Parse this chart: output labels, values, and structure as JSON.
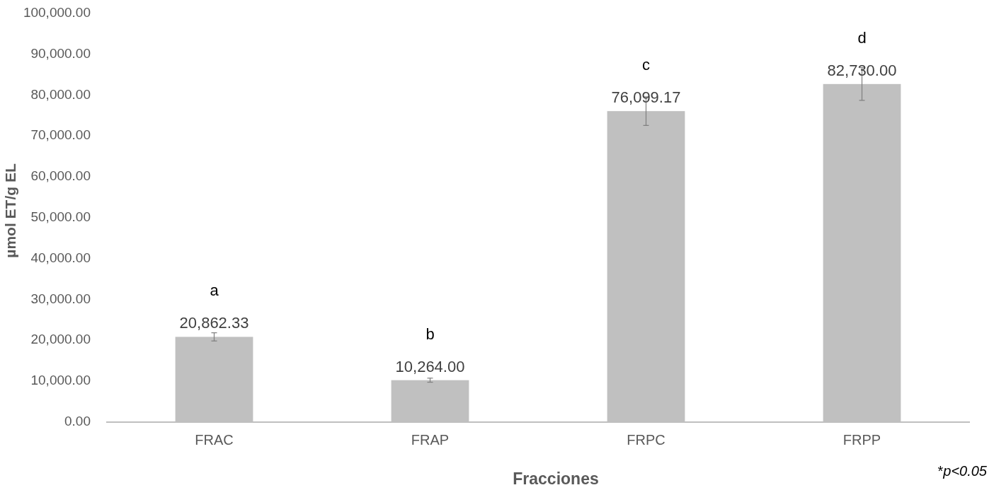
{
  "chart_data": {
    "type": "bar",
    "xlabel": "Fracciones",
    "ylabel": "µmol ET/g EL",
    "categories": [
      "FRAC",
      "FRAP",
      "FRPC",
      "FRPP"
    ],
    "values": [
      20862.33,
      10264,
      76099.17,
      82730
    ],
    "errors": [
      1000,
      500,
      3500,
      4000
    ],
    "color": "#c0c0c0",
    "value_labels": [
      "20,862.33",
      "10,264.00",
      "76,099.17",
      "82,730.00"
    ],
    "ylim": [
      0,
      100000
    ],
    "yticks": [
      {
        "value": 0,
        "label": "0.00"
      },
      {
        "value": 10000,
        "label": "10,000.00"
      },
      {
        "value": 20000,
        "label": "20,000.00"
      },
      {
        "value": 30000,
        "label": "30,000.00"
      },
      {
        "value": 40000,
        "label": "40,000.00"
      },
      {
        "value": 50000,
        "label": "50,000.00"
      },
      {
        "value": 60000,
        "label": "60,000.00"
      },
      {
        "value": 70000,
        "label": "70,000.00"
      },
      {
        "value": 80000,
        "label": "80,000.00"
      },
      {
        "value": 90000,
        "label": "90,000.00"
      },
      {
        "value": 100000,
        "label": "100,000.00"
      }
    ],
    "grid": false,
    "annotations": [
      "a",
      "b",
      "c",
      "d",
      "*p<0.05"
    ]
  }
}
